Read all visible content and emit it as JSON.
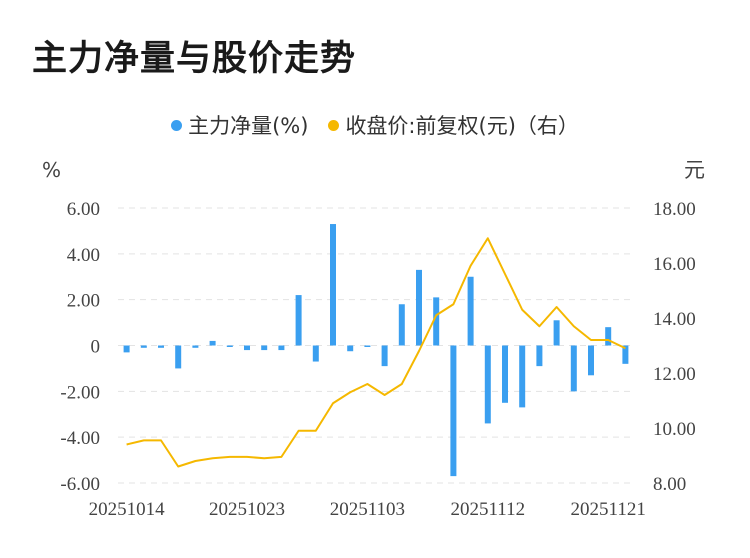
{
  "title": "主力净量与股价走势",
  "legend": {
    "series1": "主力净量(%)",
    "series2": "收盘价:前复权(元)（右）"
  },
  "colors": {
    "bar": "#3a9ff0",
    "line": "#f5b800",
    "grid": "#e3e3e3",
    "text": "#444444"
  },
  "chart_data": {
    "type": "bar",
    "x_tick_labels": [
      "20251014",
      "20251023",
      "20251103",
      "20251112",
      "20251121"
    ],
    "left_axis": {
      "unit": "%",
      "ylim": [
        -6,
        6
      ],
      "ticks": [
        "6.00",
        "4.00",
        "2.00",
        "0",
        "-2.00",
        "-4.00",
        "-6.00"
      ]
    },
    "right_axis": {
      "unit": "元",
      "ylim": [
        8,
        18
      ],
      "ticks": [
        "18.00",
        "16.00",
        "14.00",
        "12.00",
        "10.00",
        "8.00"
      ]
    },
    "series": [
      {
        "name": "主力净量(%)",
        "type": "bar",
        "axis": "left",
        "values": [
          -0.3,
          -0.1,
          -0.1,
          -1.0,
          -0.1,
          0.2,
          -0.05,
          -0.2,
          -0.2,
          -0.2,
          2.2,
          -0.7,
          5.3,
          -0.25,
          -0.05,
          -0.9,
          1.8,
          3.3,
          2.1,
          -5.7,
          3.0,
          -3.4,
          -2.5,
          -2.7,
          -0.9,
          1.1,
          -2.0,
          -1.3,
          0.8,
          -0.8
        ]
      },
      {
        "name": "收盘价:前复权(元)（右）",
        "type": "line",
        "axis": "right",
        "values": [
          9.4,
          9.55,
          9.55,
          8.6,
          8.8,
          8.9,
          8.95,
          8.95,
          8.9,
          8.95,
          9.9,
          9.9,
          10.9,
          11.3,
          11.6,
          11.2,
          11.6,
          12.8,
          14.1,
          14.5,
          15.9,
          16.9,
          15.6,
          14.3,
          13.7,
          14.4,
          13.7,
          13.2,
          13.2,
          12.9
        ]
      }
    ]
  }
}
